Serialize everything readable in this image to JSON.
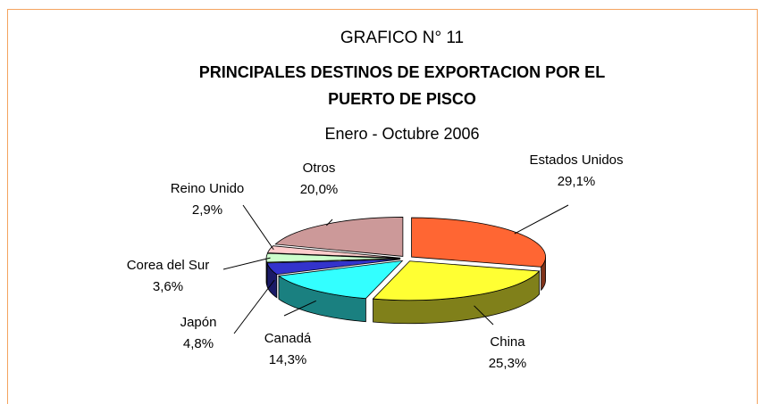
{
  "chart_data": {
    "type": "pie",
    "heading": "GRAFICO N° 11",
    "title": "PRINCIPALES DESTINOS DE EXPORTACION POR EL PUERTO DE PISCO",
    "subtitle": "Enero - Octubre 2006",
    "categories": [
      "Estados Unidos",
      "China",
      "Canadá",
      "Japón",
      "Corea del Sur",
      "Reino Unido",
      "Otros"
    ],
    "values": [
      29.1,
      25.3,
      14.3,
      4.8,
      3.6,
      2.9,
      20.0
    ],
    "value_labels": [
      "29,1%",
      "25,3%",
      "14,3%",
      "4,8%",
      "3,6%",
      "2,9%",
      "20,0%"
    ],
    "colors": [
      "#ff6633",
      "#ffff33",
      "#33ffff",
      "#3333cc",
      "#ccffcc",
      "#ffcccc",
      "#cc9999"
    ]
  }
}
